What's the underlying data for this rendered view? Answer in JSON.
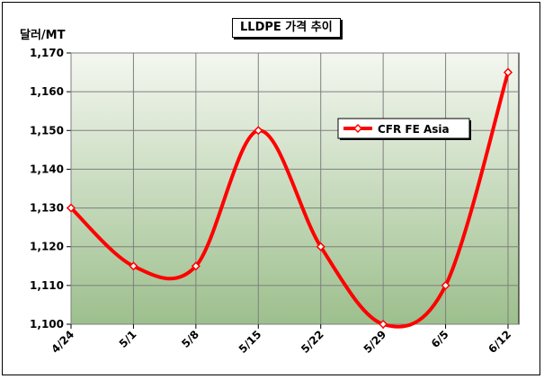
{
  "chart_data": {
    "type": "line",
    "title": "LLDPE 가격 추이",
    "ylabel": "달러/MT",
    "xlabel": "",
    "categories": [
      "4/24",
      "5/1",
      "5/8",
      "5/15",
      "5/22",
      "5/29",
      "6/5",
      "6/12"
    ],
    "series": [
      {
        "name": "CFR FE Asia",
        "values": [
          1130,
          1115,
          1115,
          1150,
          1120,
          1100,
          1110,
          1165
        ],
        "color": "#ff0000",
        "marker": "diamond"
      }
    ],
    "ylim": [
      1100,
      1170
    ],
    "yticks": [
      "1,100",
      "1,110",
      "1,120",
      "1,130",
      "1,140",
      "1,150",
      "1,160",
      "1,170"
    ],
    "ytick_values": [
      1100,
      1110,
      1120,
      1130,
      1140,
      1150,
      1160,
      1170
    ],
    "grid": true,
    "smooth": true,
    "legend_position": "upper-right",
    "plot_gradient": [
      "#9dbf8d",
      "#f4f7f0"
    ]
  }
}
